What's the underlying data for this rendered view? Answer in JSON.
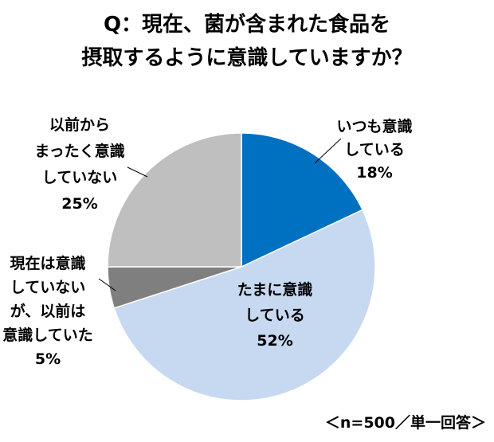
{
  "title_lines": [
    "Q：現在、菌が含まれた食品を",
    "摂取するように意識していますか？"
  ],
  "note": "＜n=500／単一回答＞",
  "chart_data": {
    "type": "pie",
    "title": "Q：現在、菌が含まれた食品を摂取するように意識していますか？",
    "start_angle_deg": 0,
    "direction": "clockwise",
    "slices": [
      {
        "label_lines": [
          "いつも意識",
          "している"
        ],
        "value": 18,
        "value_label": "18%",
        "color": "#0070c0",
        "label_color": "#000000"
      },
      {
        "label_lines": [
          "たまに意識",
          "している"
        ],
        "value": 52,
        "value_label": "52%",
        "color": "#c6d9f1",
        "label_color": "#000000"
      },
      {
        "label_lines": [
          "現在は意識",
          "していない",
          "が、以前は",
          "意識していた"
        ],
        "value": 5,
        "value_label": "5%",
        "color": "#7f7f7f",
        "label_color": "#000000"
      },
      {
        "label_lines": [
          "以前から",
          "まったく意識",
          "していない"
        ],
        "value": 25,
        "value_label": "25%",
        "color": "#bfbfbf",
        "label_color": "#000000"
      }
    ]
  }
}
